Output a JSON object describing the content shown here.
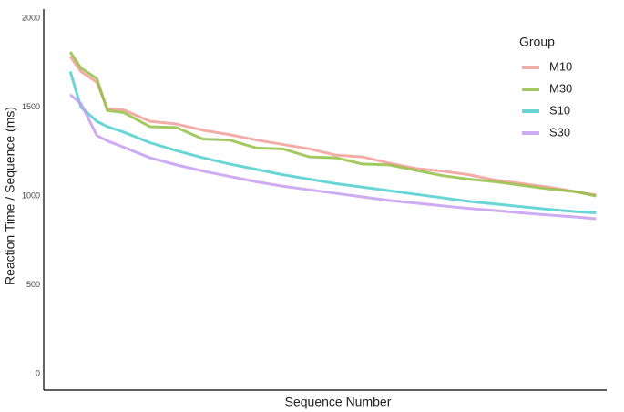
{
  "chart_data": {
    "type": "line",
    "x_label": "Sequence Number",
    "y_label": "Reaction Time / Sequence (ms)",
    "legend_title": "Group",
    "legend_position": "right",
    "grid": false,
    "x": [
      1,
      3,
      6,
      8,
      11,
      16,
      21,
      26,
      31,
      36,
      41,
      46,
      51,
      56,
      61,
      66,
      71,
      76,
      81,
      86,
      91,
      96,
      100
    ],
    "xlim": [
      -4,
      102
    ],
    "ylim": [
      0,
      2000
    ],
    "yticks": [
      0,
      500,
      1000,
      1500,
      2000
    ],
    "series": [
      {
        "name": "M10",
        "color": "#f29d96",
        "values": [
          1785,
          1700,
          1640,
          1490,
          1485,
          1420,
          1405,
          1370,
          1345,
          1315,
          1290,
          1265,
          1230,
          1220,
          1185,
          1155,
          1140,
          1120,
          1090,
          1070,
          1050,
          1025,
          1005
        ]
      },
      {
        "name": "M30",
        "color": "#93bf45",
        "values": [
          1810,
          1720,
          1660,
          1480,
          1470,
          1390,
          1385,
          1320,
          1315,
          1270,
          1265,
          1220,
          1215,
          1180,
          1175,
          1145,
          1115,
          1095,
          1080,
          1060,
          1040,
          1025,
          1000
        ]
      },
      {
        "name": "S10",
        "color": "#4fcfcf",
        "values": [
          1700,
          1500,
          1420,
          1390,
          1360,
          1300,
          1255,
          1215,
          1180,
          1150,
          1120,
          1095,
          1070,
          1050,
          1030,
          1010,
          990,
          970,
          955,
          940,
          925,
          912,
          905
        ]
      },
      {
        "name": "S30",
        "color": "#c59cf0",
        "values": [
          1570,
          1520,
          1340,
          1310,
          1275,
          1215,
          1175,
          1140,
          1110,
          1080,
          1055,
          1035,
          1015,
          995,
          975,
          960,
          945,
          930,
          918,
          905,
          893,
          882,
          872
        ]
      }
    ]
  }
}
